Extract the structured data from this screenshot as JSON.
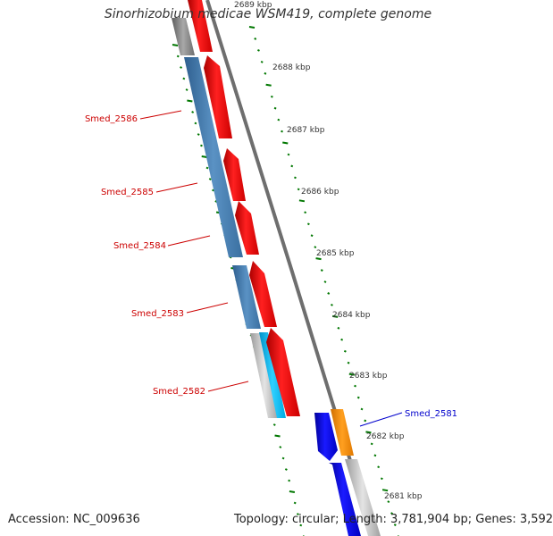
{
  "title": "Sinorhizobium medicae WSM419, complete genome",
  "footer": {
    "accession": "Accession: NC_009636",
    "summary": "Topology: circular; Length: 3,781,904 bp; Genes: 3,592"
  },
  "ticks": [
    "2689 kbp",
    "2688 kbp",
    "2687 kbp",
    "2686 kbp",
    "2685 kbp",
    "2684 kbp",
    "2683 kbp",
    "2682 kbp",
    "2681 kbp"
  ],
  "genes": [
    {
      "label": "Smed_2586",
      "color": "#cc0000"
    },
    {
      "label": "Smed_2585",
      "color": "#cc0000"
    },
    {
      "label": "Smed_2584",
      "color": "#cc0000"
    },
    {
      "label": "Smed_2583",
      "color": "#cc0000"
    },
    {
      "label": "Smed_2582",
      "color": "#cc0000"
    },
    {
      "label": "Smed_2581",
      "color": "#0000cc"
    }
  ],
  "colors": {
    "forward_cds": "#ff0000",
    "reverse_cds": "#0000ff",
    "orange_cds": "#ff8c00",
    "steel_blue": "#4682b4",
    "cyan": "#00bfff",
    "backbone": "#808080",
    "tick_green": "#007700"
  }
}
